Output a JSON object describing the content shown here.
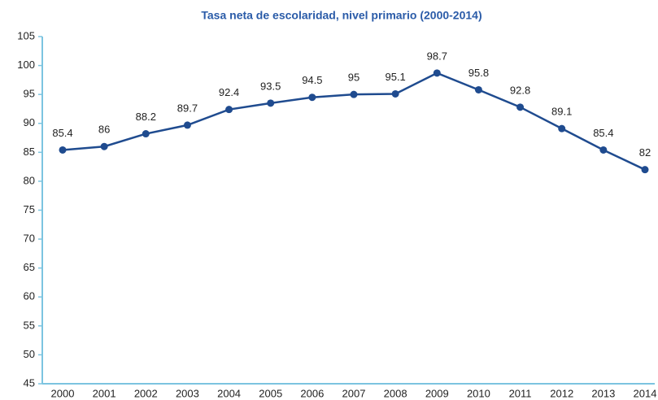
{
  "chart_data": {
    "type": "line",
    "title": "Tasa neta de escolaridad, nivel primario (2000-2014)",
    "categories": [
      "2000",
      "2001",
      "2002",
      "2003",
      "2004",
      "2005",
      "2006",
      "2007",
      "2008",
      "2009",
      "2010",
      "2011",
      "2012",
      "2013",
      "2014"
    ],
    "values": [
      85.4,
      86,
      88.2,
      89.7,
      92.4,
      93.5,
      94.5,
      95,
      95.1,
      98.7,
      95.8,
      92.8,
      89.1,
      85.4,
      82
    ],
    "color": "#1f4b8f",
    "ylim": [
      45,
      105
    ],
    "yticks": [
      45,
      50,
      55,
      60,
      65,
      70,
      75,
      80,
      85,
      90,
      95,
      100,
      105
    ],
    "grid": false
  }
}
